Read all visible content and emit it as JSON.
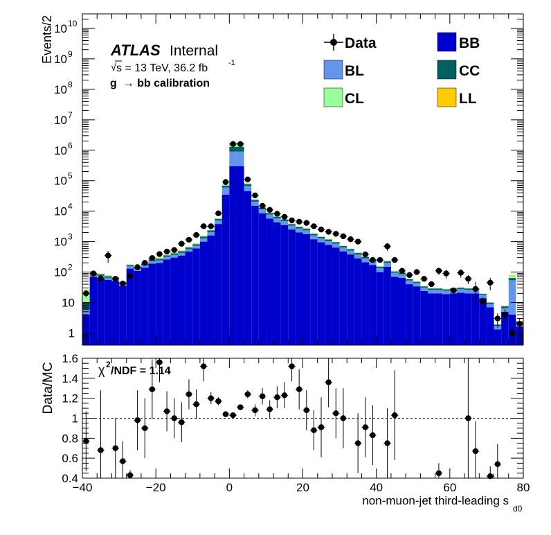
{
  "chart_data": [
    {
      "type": "histogram-stacked-log",
      "ylabel": "Events/2",
      "xlim": [
        -40,
        80
      ],
      "ylim_log": [
        0.4,
        30000000000.0
      ],
      "bin_width": 2,
      "atlas": {
        "brand": "ATLAS",
        "status": "Internal",
        "energy": "s = 13 TeV, 36.2 fb",
        "energy_sup": "-1",
        "sqrt_sym": "√",
        "selection": "g  → bb calibration"
      },
      "legend": [
        {
          "key": "Data",
          "label": "Data",
          "color": "#000000"
        },
        {
          "key": "BB",
          "label": "BB",
          "color": "#0000cc"
        },
        {
          "key": "BL",
          "label": "BL",
          "color": "#6495ed"
        },
        {
          "key": "CC",
          "label": "CC",
          "color": "#006060"
        },
        {
          "key": "CL",
          "label": "CL",
          "color": "#99ff99"
        },
        {
          "key": "LL",
          "label": "LL",
          "color": "#ffcc00"
        }
      ],
      "y_tick_labels": [
        {
          "value": 1,
          "base": "1",
          "exp": ""
        },
        {
          "value": 10,
          "base": "10",
          "exp": ""
        },
        {
          "value": 100,
          "base": "10",
          "exp": "2"
        },
        {
          "value": 1000,
          "base": "10",
          "exp": "3"
        },
        {
          "value": 10000,
          "base": "10",
          "exp": "4"
        },
        {
          "value": 100000,
          "base": "10",
          "exp": "5"
        },
        {
          "value": 1000000,
          "base": "10",
          "exp": "6"
        },
        {
          "value": 10000000,
          "base": "10",
          "exp": "7"
        },
        {
          "value": 100000000,
          "base": "10",
          "exp": "8"
        },
        {
          "value": 1000000000,
          "base": "10",
          "exp": "9"
        },
        {
          "value": 10000000000,
          "base": "10",
          "exp": "10"
        }
      ],
      "bins": [
        -40,
        -38,
        -36,
        -34,
        -32,
        -30,
        -28,
        -26,
        -24,
        -22,
        -20,
        -18,
        -16,
        -14,
        -12,
        -10,
        -8,
        -6,
        -4,
        -2,
        0,
        2,
        4,
        6,
        8,
        10,
        12,
        14,
        16,
        18,
        20,
        22,
        24,
        26,
        28,
        30,
        32,
        34,
        36,
        38,
        40,
        42,
        44,
        46,
        48,
        50,
        52,
        54,
        56,
        58,
        60,
        62,
        64,
        66,
        68,
        70,
        72,
        74,
        76,
        78
      ],
      "mc_total": [
        26,
        100,
        90,
        80,
        70,
        50,
        180,
        150,
        200,
        280,
        300,
        380,
        450,
        520,
        700,
        900,
        1600,
        2500,
        6000,
        75000,
        1800000,
        1800000,
        85000,
        25000,
        14000,
        9200,
        7000,
        5600,
        4000,
        3200,
        2800,
        1900,
        1500,
        1250,
        1000,
        750,
        600,
        450,
        330,
        270,
        160,
        240,
        110,
        100,
        60,
        50,
        35,
        30,
        30,
        28,
        30,
        32,
        30,
        30,
        20,
        10,
        2,
        8,
        80,
        2.5
      ],
      "bb": [
        4,
        70,
        65,
        55,
        50,
        35,
        130,
        110,
        140,
        190,
        200,
        260,
        300,
        350,
        470,
        600,
        1000,
        1600,
        3800,
        35000,
        300000,
        300000,
        45000,
        15000,
        8500,
        5700,
        4300,
        3500,
        2500,
        2000,
        1750,
        1200,
        950,
        780,
        640,
        480,
        380,
        280,
        210,
        170,
        100,
        150,
        70,
        65,
        40,
        34,
        24,
        20,
        20,
        19,
        20,
        21,
        20,
        20,
        14,
        7,
        1.3,
        5,
        4,
        1.6
      ],
      "bl": [
        2,
        12,
        11,
        10,
        9,
        6,
        24,
        20,
        28,
        40,
        44,
        56,
        66,
        78,
        100,
        130,
        280,
        450,
        1150,
        25000,
        600000,
        600000,
        22000,
        5500,
        3000,
        2000,
        1520,
        1190,
        850,
        680,
        590,
        400,
        320,
        260,
        220,
        160,
        125,
        95,
        70,
        58,
        35,
        50,
        25,
        20,
        13,
        10,
        7,
        6,
        6,
        5.5,
        6,
        6.5,
        6,
        6,
        4,
        2,
        0.4,
        1.6,
        50,
        0.5
      ],
      "cc": [
        4,
        10,
        9,
        8,
        7,
        5,
        16,
        13,
        18,
        26,
        30,
        38,
        46,
        54,
        72,
        95,
        190,
        300,
        640,
        9000,
        400000,
        400000,
        10000,
        2800,
        1500,
        980,
        740,
        590,
        420,
        340,
        300,
        200,
        160,
        135,
        100,
        75,
        62,
        48,
        33,
        27,
        16,
        25,
        10,
        10,
        5,
        4,
        3,
        3,
        3,
        2.5,
        3,
        3,
        3,
        3,
        1.5,
        1,
        0.2,
        0.9,
        10,
        0.3
      ],
      "cl": [
        15,
        6,
        4,
        5,
        3,
        3,
        8,
        6,
        10,
        18,
        20,
        20,
        30,
        30,
        48,
        60,
        110,
        130,
        350,
        5000,
        450000,
        450000,
        7000,
        1500,
        800,
        440,
        360,
        260,
        180,
        140,
        120,
        80,
        60,
        60,
        35,
        30,
        30,
        25,
        15,
        13,
        8,
        14,
        4,
        4,
        1.6,
        1.5,
        1,
        0.8,
        0.8,
        0.8,
        0.8,
        1,
        0.8,
        0.8,
        0.4,
        0.1,
        0.06,
        0.3,
        13,
        0.07
      ],
      "ll": [
        1,
        2,
        1,
        2,
        1,
        1,
        2,
        1,
        4,
        6,
        6,
        6,
        8,
        8,
        10,
        15,
        20,
        20,
        60,
        1000,
        50000,
        50000,
        1000,
        200,
        200,
        80,
        80,
        60,
        50,
        40,
        40,
        20,
        10,
        15,
        5,
        5,
        3,
        2,
        2,
        2,
        1,
        1,
        1,
        1,
        0.4,
        0.5,
        0,
        0.2,
        0.2,
        0.2,
        0.2,
        0.5,
        0.2,
        0.2,
        0.1,
        0,
        0,
        0.2,
        3,
        0.03
      ],
      "data": [
        {
          "x": -39,
          "y": 20,
          "err": 5
        },
        {
          "x": -37,
          "y": 90,
          "err": 10
        },
        {
          "x": -35,
          "y": 62,
          "err": 8
        },
        {
          "x": -33,
          "y": 350,
          "err": 150
        },
        {
          "x": -31,
          "y": 60,
          "err": 8
        },
        {
          "x": -29,
          "y": 42,
          "err": 7
        },
        {
          "x": -27,
          "y": 75,
          "err": 9
        },
        {
          "x": -25,
          "y": 145,
          "err": 12
        },
        {
          "x": -23,
          "y": 200,
          "err": 14
        },
        {
          "x": -21,
          "y": 290,
          "err": 17
        },
        {
          "x": -19,
          "y": 390,
          "err": 20
        },
        {
          "x": -17,
          "y": 470,
          "err": 22
        },
        {
          "x": -15,
          "y": 530,
          "err": 23
        },
        {
          "x": -13,
          "y": 850,
          "err": 29
        },
        {
          "x": -11,
          "y": 1150,
          "err": 34
        },
        {
          "x": -9,
          "y": 1650,
          "err": 41
        },
        {
          "x": -7,
          "y": 3200,
          "err": 57
        },
        {
          "x": -5,
          "y": 3200,
          "err": 57
        },
        {
          "x": -3,
          "y": 8500,
          "err": 92
        },
        {
          "x": -1,
          "y": 90000,
          "err": 300
        },
        {
          "x": 1,
          "y": 1600000,
          "err": 1300
        },
        {
          "x": 3,
          "y": 1600000,
          "err": 1300
        },
        {
          "x": 5,
          "y": 110000,
          "err": 330
        },
        {
          "x": 7,
          "y": 33000,
          "err": 180
        },
        {
          "x": 9,
          "y": 15000,
          "err": 120
        },
        {
          "x": 11,
          "y": 11000,
          "err": 100
        },
        {
          "x": 13,
          "y": 8200,
          "err": 90
        },
        {
          "x": 15,
          "y": 6500,
          "err": 80
        },
        {
          "x": 17,
          "y": 5000,
          "err": 70
        },
        {
          "x": 19,
          "y": 4500,
          "err": 67
        },
        {
          "x": 21,
          "y": 4100,
          "err": 64
        },
        {
          "x": 23,
          "y": 3200,
          "err": 57
        },
        {
          "x": 25,
          "y": 2500,
          "err": 50
        },
        {
          "x": 27,
          "y": 2100,
          "err": 46
        },
        {
          "x": 29,
          "y": 1800,
          "err": 42
        },
        {
          "x": 31,
          "y": 1500,
          "err": 39
        },
        {
          "x": 33,
          "y": 1200,
          "err": 35
        },
        {
          "x": 35,
          "y": 1000,
          "err": 32
        },
        {
          "x": 37,
          "y": 380,
          "err": 20
        },
        {
          "x": 39,
          "y": 250,
          "err": 16
        },
        {
          "x": 41,
          "y": 250,
          "err": 16
        },
        {
          "x": 43,
          "y": 700,
          "err": 200
        },
        {
          "x": 45,
          "y": 250,
          "err": 16
        },
        {
          "x": 47,
          "y": 110,
          "err": 10
        },
        {
          "x": 49,
          "y": 80,
          "err": 9
        },
        {
          "x": 51,
          "y": 100,
          "err": 10
        },
        {
          "x": 53,
          "y": 60,
          "err": 8
        },
        {
          "x": 55,
          "y": 40,
          "err": 6
        },
        {
          "x": 57,
          "y": 110,
          "err": 30
        },
        {
          "x": 59,
          "y": 90,
          "err": 30
        },
        {
          "x": 61,
          "y": 25,
          "err": 6
        },
        {
          "x": 63,
          "y": 95,
          "err": 30
        },
        {
          "x": 65,
          "y": 60,
          "err": 20
        },
        {
          "x": 67,
          "y": 28,
          "err": 20
        },
        {
          "x": 69,
          "y": 11,
          "err": 4
        },
        {
          "x": 71,
          "y": 45,
          "err": 20
        },
        {
          "x": 73,
          "y": 3,
          "err": 1.5
        },
        {
          "x": 75,
          "y": 4,
          "err": 2
        },
        {
          "x": 77,
          "y": 1.0,
          "err": 0.5
        },
        {
          "x": 79,
          "y": 2,
          "err": 1
        }
      ]
    },
    {
      "type": "scatter-errorbar",
      "xlabel": "non-muon-jet third-leading s",
      "xlabel_sub": "d0",
      "ylabel": "Data/MC",
      "xlim": [
        -40,
        80
      ],
      "ylim": [
        0.4,
        1.6
      ],
      "reference_line": 1,
      "annotation": {
        "chi": "χ",
        "chi_sup": "2",
        "rest": "/NDF = 1.14"
      },
      "x_tick_labels": [
        "−40",
        "−20",
        "0",
        "20",
        "40",
        "60",
        "80"
      ],
      "x_tick_values": [
        -40,
        -20,
        0,
        20,
        40,
        60,
        80
      ],
      "y_tick_labels": [
        "0.4",
        "0.6",
        "0.8",
        "1",
        "1.2",
        "1.4",
        "1.6"
      ],
      "y_tick_values": [
        0.4,
        0.6,
        0.8,
        1.0,
        1.2,
        1.4,
        1.6
      ],
      "points": [
        {
          "x": -39,
          "y": 0.77,
          "lo": 0.3,
          "hi": 0.3
        },
        {
          "x": -35,
          "y": 0.68,
          "lo": 0.35,
          "hi": 0.6
        },
        {
          "x": -31,
          "y": 0.7,
          "lo": 0.3,
          "hi": 0.3
        },
        {
          "x": -29,
          "y": 0.57,
          "lo": 0.2,
          "hi": 0.2
        },
        {
          "x": -27,
          "y": 0.43,
          "lo": 0.05,
          "hi": 0.05
        },
        {
          "x": -25,
          "y": 0.98,
          "lo": 0.3,
          "hi": 0.3
        },
        {
          "x": -23,
          "y": 0.9,
          "lo": 0.3,
          "hi": 0.3
        },
        {
          "x": -21,
          "y": 1.29,
          "lo": 0.3,
          "hi": 0.3
        },
        {
          "x": -19,
          "y": 1.56,
          "lo": 0.2,
          "hi": 0.2
        },
        {
          "x": -17,
          "y": 1.07,
          "lo": 0.2,
          "hi": 0.2
        },
        {
          "x": -15,
          "y": 1.0,
          "lo": 0.2,
          "hi": 0.2
        },
        {
          "x": -13,
          "y": 0.96,
          "lo": 0.2,
          "hi": 0.2
        },
        {
          "x": -11,
          "y": 1.24,
          "lo": 0.15,
          "hi": 0.15
        },
        {
          "x": -9,
          "y": 1.14,
          "lo": 0.15,
          "hi": 0.15
        },
        {
          "x": -7,
          "y": 1.52,
          "lo": 0.15,
          "hi": 0.15
        },
        {
          "x": -5,
          "y": 1.2,
          "lo": 0.06,
          "hi": 0.06
        },
        {
          "x": -3,
          "y": 1.17,
          "lo": 0.04,
          "hi": 0.04
        },
        {
          "x": -1,
          "y": 1.04,
          "lo": 0.02,
          "hi": 0.02
        },
        {
          "x": 1,
          "y": 1.03,
          "lo": 0.01,
          "hi": 0.01
        },
        {
          "x": 3,
          "y": 1.11,
          "lo": 0.02,
          "hi": 0.02
        },
        {
          "x": 5,
          "y": 1.24,
          "lo": 0.04,
          "hi": 0.04
        },
        {
          "x": 7,
          "y": 1.08,
          "lo": 0.06,
          "hi": 0.06
        },
        {
          "x": 9,
          "y": 1.22,
          "lo": 0.08,
          "hi": 0.08
        },
        {
          "x": 11,
          "y": 1.09,
          "lo": 0.09,
          "hi": 0.09
        },
        {
          "x": 13,
          "y": 1.21,
          "lo": 0.11,
          "hi": 0.11
        },
        {
          "x": 15,
          "y": 1.23,
          "lo": 0.13,
          "hi": 0.13
        },
        {
          "x": 17,
          "y": 1.52,
          "lo": 0.15,
          "hi": 0.15
        },
        {
          "x": 19,
          "y": 1.29,
          "lo": 0.2,
          "hi": 0.2
        },
        {
          "x": 21,
          "y": 1.08,
          "lo": 0.2,
          "hi": 0.2
        },
        {
          "x": 23,
          "y": 0.88,
          "lo": 0.2,
          "hi": 0.2
        },
        {
          "x": 25,
          "y": 0.91,
          "lo": 0.3,
          "hi": 0.3
        },
        {
          "x": 27,
          "y": 1.36,
          "lo": 0.25,
          "hi": 0.25
        },
        {
          "x": 29,
          "y": 1.05,
          "lo": 0.25,
          "hi": 0.25
        },
        {
          "x": 31,
          "y": 1.0,
          "lo": 0.3,
          "hi": 0.3
        },
        {
          "x": 35,
          "y": 0.75,
          "lo": 0.3,
          "hi": 0.3
        },
        {
          "x": 37,
          "y": 0.91,
          "lo": 0.3,
          "hi": 0.3
        },
        {
          "x": 39,
          "y": 0.83,
          "lo": 0.3,
          "hi": 0.3
        },
        {
          "x": 43,
          "y": 0.75,
          "lo": 0.35,
          "hi": 0.35
        },
        {
          "x": 45,
          "y": 1.03,
          "lo": 0.45,
          "hi": 0.45
        },
        {
          "x": 57,
          "y": 0.45,
          "lo": 0.1,
          "hi": 0.1
        },
        {
          "x": 65,
          "y": 1.0,
          "lo": 0.6,
          "hi": 0.6
        },
        {
          "x": 67,
          "y": 0.67,
          "lo": 0.3,
          "hi": 0.3
        },
        {
          "x": 71,
          "y": 0.42,
          "lo": 0.1,
          "hi": 0.1
        },
        {
          "x": 73,
          "y": 0.54,
          "lo": 0.2,
          "hi": 0.2
        }
      ]
    }
  ]
}
